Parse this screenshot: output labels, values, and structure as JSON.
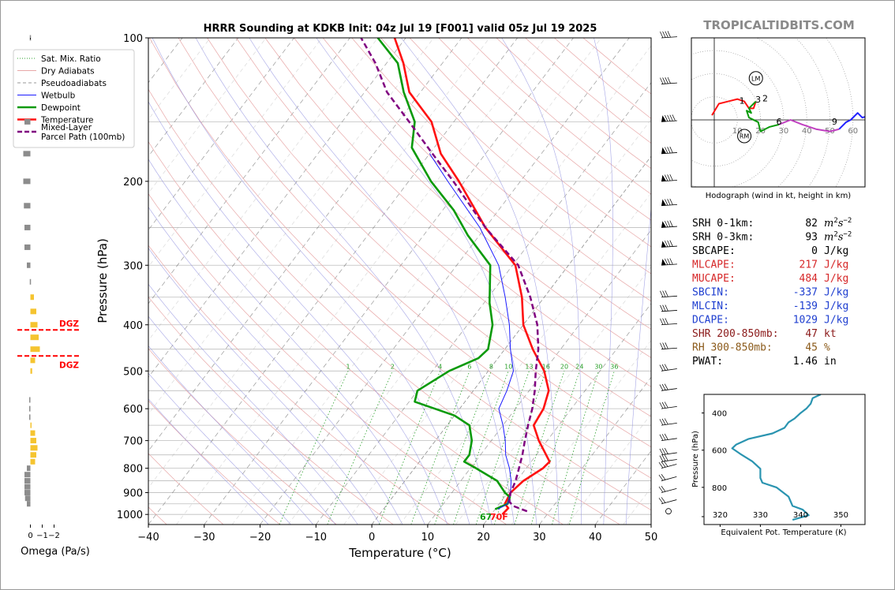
{
  "chart_data": [
    {
      "type": "line",
      "title": "HRRR Sounding at KDKB Init: 04z Jul 19 [F001] valid 05z Jul 19 2025",
      "xlabel": "Temperature (°C)",
      "ylabel": "Pressure (hPa)",
      "xlim": [
        -40,
        50
      ],
      "ylim": [
        1050,
        100
      ],
      "y_scale": "log",
      "x_ticks": [
        "−40",
        "−30",
        "−20",
        "−10",
        "0",
        "10",
        "20",
        "30",
        "40",
        "50"
      ],
      "y_ticks": [
        "100",
        "200",
        "300",
        "400",
        "500",
        "600",
        "700",
        "800",
        "900",
        "1000"
      ],
      "skew": true,
      "legend": {
        "position": "top-left",
        "entries": [
          {
            "label": "Sat. Mix. Ratio",
            "color": "#2ca02c",
            "style": "dotted"
          },
          {
            "label": "Dry Adiabats",
            "color": "#e8a8a8",
            "style": "solid"
          },
          {
            "label": "Pseudoadiabats",
            "color": "#9a9a9a",
            "style": "dashed"
          },
          {
            "label": "Wetbulb",
            "color": "#1a1aff",
            "style": "solid"
          },
          {
            "label": "Dewpoint",
            "color": "#0a9a0a",
            "style": "solid"
          },
          {
            "label": "Temperature",
            "color": "#ff1111",
            "style": "solid"
          },
          {
            "label": "Mixed-Layer\nParcel Path (100mb)",
            "color": "#800080",
            "style": "dashed"
          }
        ]
      },
      "mixing_ratio_labels": [
        "1",
        "2",
        "4",
        "6",
        "8",
        "10",
        "13",
        "16",
        "20",
        "24",
        "30",
        "36"
      ],
      "surface_annotation": {
        "dewpoint": "67",
        "temperature": "70F"
      },
      "series": [
        {
          "name": "Temperature",
          "color": "#ff1111",
          "points": [
            [
              1000,
              22
            ],
            [
              970,
              22.2
            ],
            [
              950,
              21
            ],
            [
              900,
              20.5
            ],
            [
              850,
              21.2
            ],
            [
              800,
              23
            ],
            [
              775,
              23.3
            ],
            [
              700,
              18.5
            ],
            [
              650,
              15.5
            ],
            [
              600,
              15
            ],
            [
              550,
              13.5
            ],
            [
              500,
              10
            ],
            [
              450,
              5
            ],
            [
              400,
              0
            ],
            [
              350,
              -4
            ],
            [
              300,
              -9.5
            ],
            [
              250,
              -20
            ],
            [
              200,
              -31
            ],
            [
              175,
              -38
            ],
            [
              150,
              -44
            ],
            [
              130,
              -52
            ],
            [
              113,
              -57
            ],
            [
              100,
              -62
            ]
          ]
        },
        {
          "name": "Dewpoint",
          "color": "#0a9a0a",
          "points": [
            [
              975,
              20
            ],
            [
              950,
              21.5
            ],
            [
              920,
              21
            ],
            [
              900,
              19.5
            ],
            [
              850,
              16.5
            ],
            [
              800,
              11
            ],
            [
              775,
              8
            ],
            [
              750,
              8
            ],
            [
              700,
              6.5
            ],
            [
              650,
              4
            ],
            [
              620,
              0
            ],
            [
              580,
              -9
            ],
            [
              550,
              -10
            ],
            [
              500,
              -7
            ],
            [
              470,
              -3.5
            ],
            [
              450,
              -3
            ],
            [
              400,
              -5.5
            ],
            [
              360,
              -9
            ],
            [
              300,
              -14
            ],
            [
              260,
              -22
            ],
            [
              230,
              -28
            ],
            [
              200,
              -36
            ],
            [
              170,
              -44
            ],
            [
              150,
              -47
            ],
            [
              130,
              -53
            ],
            [
              113,
              -58
            ],
            [
              100,
              -65
            ]
          ]
        },
        {
          "name": "Wetbulb",
          "color": "#1a1aff",
          "points": [
            [
              975,
              20.5
            ],
            [
              950,
              21.5
            ],
            [
              900,
              20.5
            ],
            [
              850,
              19
            ],
            [
              800,
              17
            ],
            [
              750,
              14.5
            ],
            [
              700,
              12.5
            ],
            [
              650,
              10
            ],
            [
              600,
              7
            ],
            [
              550,
              6
            ],
            [
              500,
              4.5
            ],
            [
              450,
              1
            ],
            [
              400,
              -2.5
            ],
            [
              350,
              -7
            ],
            [
              300,
              -12.5
            ],
            [
              250,
              -21
            ],
            [
              200,
              -33
            ],
            [
              175,
              -40
            ]
          ]
        },
        {
          "name": "Mixed-Layer Parcel Path (100mb)",
          "color": "#800080",
          "points": [
            [
              985,
              26
            ],
            [
              960,
              22.8
            ],
            [
              940,
              21.5
            ],
            [
              900,
              20.5
            ],
            [
              850,
              19.8
            ],
            [
              800,
              18.7
            ],
            [
              750,
              17.5
            ],
            [
              700,
              16
            ],
            [
              650,
              14.5
            ],
            [
              600,
              13
            ],
            [
              550,
              11
            ],
            [
              500,
              8.5
            ],
            [
              450,
              6
            ],
            [
              400,
              2.5
            ],
            [
              350,
              -2.5
            ],
            [
              300,
              -9
            ],
            [
              250,
              -20
            ],
            [
              200,
              -32
            ],
            [
              175,
              -39.5
            ],
            [
              150,
              -48
            ],
            [
              130,
              -56
            ],
            [
              113,
              -62
            ],
            [
              100,
              -68
            ]
          ]
        }
      ],
      "wind_barb_levels": [
        1000,
        950,
        900,
        850,
        800,
        775,
        750,
        700,
        650,
        600,
        550,
        500,
        450,
        400,
        375,
        350,
        300,
        275,
        250,
        225,
        200,
        175,
        150,
        125,
        100
      ]
    },
    {
      "type": "bar",
      "xlabel": "Omega (Pa/s)",
      "x_ticks": [
        "0",
        "−1",
        "−2"
      ],
      "dgz_label": "DGZ",
      "dgz_levels": [
        410,
        465
      ],
      "bars": [
        {
          "p": 100,
          "v": 0.05
        },
        {
          "p": 150,
          "v": 0.5
        },
        {
          "p": 175,
          "v": 0.6
        },
        {
          "p": 200,
          "v": 0.6
        },
        {
          "p": 225,
          "v": 0.55
        },
        {
          "p": 250,
          "v": 0.5
        },
        {
          "p": 275,
          "v": 0.5
        },
        {
          "p": 300,
          "v": 0.3
        },
        {
          "p": 325,
          "v": 0.05
        },
        {
          "p": 350,
          "v": -0.3
        },
        {
          "p": 375,
          "v": -0.5
        },
        {
          "p": 400,
          "v": -0.6
        },
        {
          "p": 425,
          "v": -0.7
        },
        {
          "p": 450,
          "v": -0.8
        },
        {
          "p": 475,
          "v": -0.4
        },
        {
          "p": 500,
          "v": -0.15
        },
        {
          "p": 575,
          "v": 0.1
        },
        {
          "p": 600,
          "v": 0.1
        },
        {
          "p": 625,
          "v": 0.1
        },
        {
          "p": 650,
          "v": -0.1
        },
        {
          "p": 675,
          "v": -0.4
        },
        {
          "p": 700,
          "v": -0.5
        },
        {
          "p": 725,
          "v": -0.6
        },
        {
          "p": 750,
          "v": -0.5
        },
        {
          "p": 775,
          "v": -0.4
        },
        {
          "p": 800,
          "v": 0.3
        },
        {
          "p": 825,
          "v": 0.5
        },
        {
          "p": 850,
          "v": 0.5
        },
        {
          "p": 875,
          "v": 0.5
        },
        {
          "p": 900,
          "v": 0.5
        },
        {
          "p": 925,
          "v": 0.45
        },
        {
          "p": 950,
          "v": 0.3
        }
      ]
    },
    {
      "type": "line",
      "title": "Hodograph (wind in kt, height in km)",
      "ring_labels": [
        "10",
        "20",
        "30",
        "40",
        "50",
        "60"
      ],
      "markers": [
        "LM",
        "RM"
      ],
      "height_labels": [
        "1",
        "2",
        "3",
        "6",
        "9"
      ],
      "segments": [
        {
          "color": "#ff1111",
          "points": [
            [
              -1,
              2
            ],
            [
              2,
              7
            ],
            [
              6,
              8
            ],
            [
              10,
              9
            ],
            [
              13,
              8
            ],
            [
              15,
              5
            ],
            [
              17,
              5
            ],
            [
              18,
              8
            ]
          ]
        },
        {
          "color": "#0a9a0a",
          "points": [
            [
              18,
              8
            ],
            [
              15,
              5
            ],
            [
              16,
              3
            ],
            [
              14,
              4
            ],
            [
              15,
              1
            ],
            [
              19,
              -1
            ],
            [
              20,
              -5
            ],
            [
              24,
              -3
            ],
            [
              28,
              -2
            ]
          ]
        },
        {
          "color": "#c040c0",
          "points": [
            [
              28,
              -2
            ],
            [
              33,
              0
            ],
            [
              38,
              -2
            ],
            [
              44,
              -4
            ],
            [
              50,
              -5
            ],
            [
              54,
              -4
            ]
          ]
        },
        {
          "color": "#2020ff",
          "points": [
            [
              54,
              -4
            ],
            [
              57,
              -1
            ],
            [
              59,
              0
            ],
            [
              62,
              3
            ],
            [
              64,
              1
            ],
            [
              68,
              2
            ],
            [
              73,
              2
            ]
          ]
        }
      ]
    },
    {
      "type": "line",
      "xlabel": "Equivalent Pot. Temperature (K)",
      "ylabel": "Pressure (hPa)",
      "xlim": [
        316,
        356
      ],
      "ylim": [
        1000,
        300
      ],
      "x_ticks": [
        "320",
        "330",
        "340",
        "350"
      ],
      "y_ticks": [
        "400",
        "600",
        "800"
      ],
      "series": [
        {
          "name": "Theta-E",
          "color": "#2a94b0",
          "points": [
            [
              975,
              338
            ],
            [
              950,
              342
            ],
            [
              920,
              340.5
            ],
            [
              900,
              338
            ],
            [
              850,
              337
            ],
            [
              800,
              334
            ],
            [
              775,
              330.5
            ],
            [
              750,
              330
            ],
            [
              700,
              330
            ],
            [
              660,
              328
            ],
            [
              620,
              325
            ],
            [
              590,
              323
            ],
            [
              570,
              324
            ],
            [
              540,
              327
            ],
            [
              510,
              333
            ],
            [
              480,
              336
            ],
            [
              450,
              337
            ],
            [
              430,
              338.5
            ],
            [
              400,
              340
            ],
            [
              375,
              341.5
            ],
            [
              350,
              342.5
            ],
            [
              320,
              343
            ],
            [
              300,
              345
            ]
          ]
        }
      ]
    }
  ],
  "brand": "TROPICALTIDBITS.COM",
  "stats": [
    {
      "label": "SRH 0-1km:",
      "value": "82",
      "unit": "m2s-2",
      "color": "#000000"
    },
    {
      "label": "SRH 0-3km:",
      "value": "93",
      "unit": "m2s-2",
      "color": "#000000"
    },
    {
      "label": "SBCAPE:",
      "value": "0",
      "unit": "J/kg",
      "color": "#000000"
    },
    {
      "label": "MLCAPE:",
      "value": "217",
      "unit": "J/kg",
      "color": "#d62728"
    },
    {
      "label": "MUCAPE:",
      "value": "484",
      "unit": "J/kg",
      "color": "#d62728"
    },
    {
      "label": "SBCIN:",
      "value": "-337",
      "unit": "J/kg",
      "color": "#1f3fd0"
    },
    {
      "label": "MLCIN:",
      "value": "-139",
      "unit": "J/kg",
      "color": "#1f3fd0"
    },
    {
      "label": "DCAPE:",
      "value": "1029",
      "unit": "J/kg",
      "color": "#1f3fd0"
    },
    {
      "label": "SHR 200-850mb:",
      "value": "47",
      "unit": "kt",
      "color": "#8b1a1a"
    },
    {
      "label": "RH 300-850mb:",
      "value": "45",
      "unit": "%",
      "color": "#8b5a1a"
    },
    {
      "label": "PWAT:",
      "value": "1.46",
      "unit": "in",
      "color": "#000000"
    }
  ]
}
